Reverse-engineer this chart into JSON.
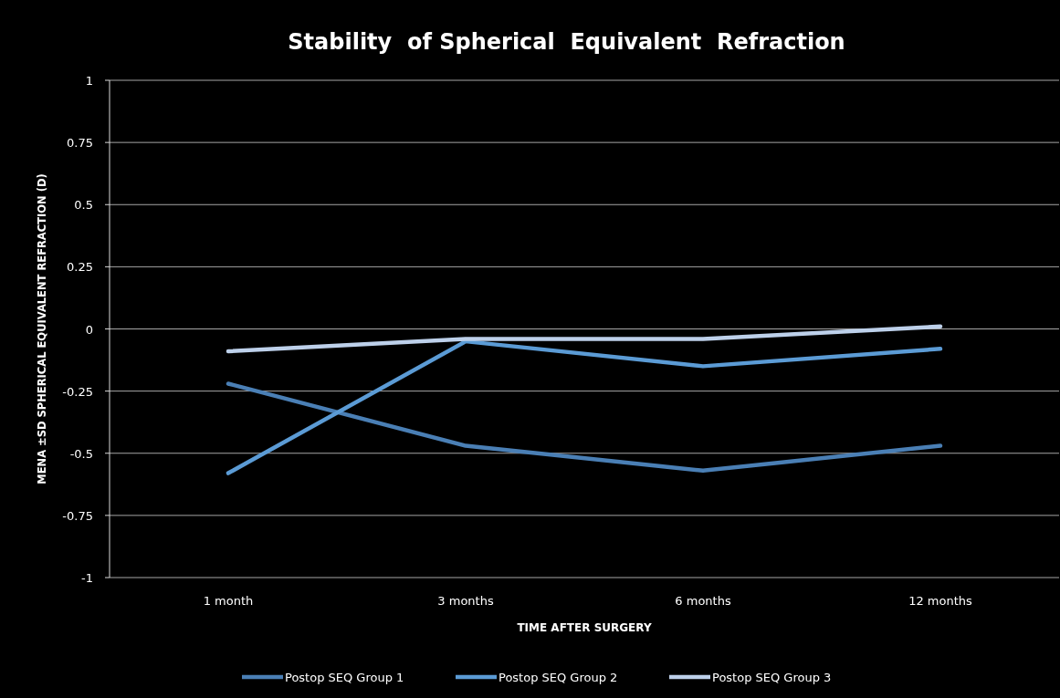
{
  "chart_data": {
    "type": "line",
    "title": "Stability  of Spherical  Equivalent  Refraction",
    "xlabel": "TIME AFTER SURGERY",
    "ylabel": "MENA ±SD SPHERICAL EQUIVALENT REFRACTION (D)",
    "categories": [
      "1 month",
      "3 months",
      "6 months",
      "12 months"
    ],
    "series": [
      {
        "name": "Postop SEQ Group 1",
        "color": "#4a7fb5",
        "values": [
          -0.22,
          -0.47,
          -0.57,
          -0.47
        ]
      },
      {
        "name": "Postop SEQ Group 2",
        "color": "#5b9bd5",
        "values": [
          -0.58,
          -0.05,
          -0.15,
          -0.08
        ]
      },
      {
        "name": "Postop SEQ Group 3",
        "color": "#bdd0ea",
        "values": [
          -0.09,
          -0.04,
          -0.04,
          0.01
        ]
      }
    ],
    "ylim": [
      -1,
      1
    ],
    "yticks": [
      -1,
      -0.75,
      -0.5,
      -0.25,
      0,
      0.25,
      0.5,
      0.75,
      1
    ],
    "grid": "y",
    "legend": "bottom",
    "marker": "none",
    "line_style": "solid"
  }
}
